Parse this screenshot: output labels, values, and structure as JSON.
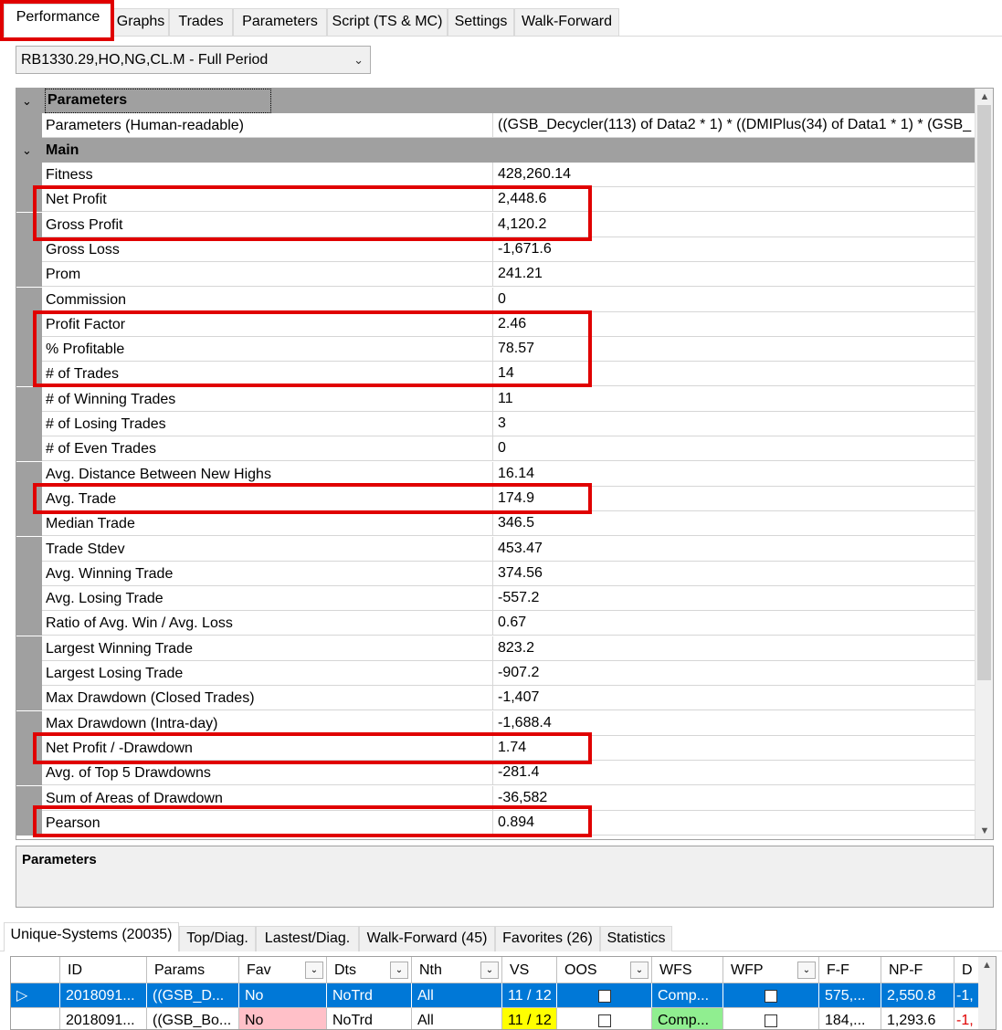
{
  "tabs": [
    "Performance",
    "Graphs",
    "Trades",
    "Parameters",
    "Script (TS & MC)",
    "Settings",
    "Walk-Forward"
  ],
  "period_select": "RB1330.29,HO,NG,CL.M - Full Period",
  "grid": {
    "cat_parameters": "Parameters",
    "param_name": "Parameters (Human-readable)",
    "param_value": "((GSB_Decycler(113) of Data2 * 1) * ((DMIPlus(34) of Data1 * 1) * (GSB_",
    "cat_main": "Main",
    "rows": [
      {
        "name": "Fitness",
        "value": "428,260.14"
      },
      {
        "name": "Net Profit",
        "value": "2,448.6"
      },
      {
        "name": "Gross Profit",
        "value": "4,120.2"
      },
      {
        "name": "Gross Loss",
        "value": "-1,671.6"
      },
      {
        "name": "Prom",
        "value": "241.21"
      },
      {
        "name": "Commission",
        "value": "0"
      },
      {
        "name": "Profit Factor",
        "value": "2.46"
      },
      {
        "name": "% Profitable",
        "value": "78.57"
      },
      {
        "name": "# of Trades",
        "value": "14"
      },
      {
        "name": "# of Winning Trades",
        "value": "11"
      },
      {
        "name": "# of Losing Trades",
        "value": "3"
      },
      {
        "name": "# of Even Trades",
        "value": "0"
      },
      {
        "name": "Avg. Distance Between New Highs",
        "value": "16.14"
      },
      {
        "name": "Avg. Trade",
        "value": "174.9"
      },
      {
        "name": "Median Trade",
        "value": "346.5"
      },
      {
        "name": "Trade Stdev",
        "value": "453.47"
      },
      {
        "name": "Avg. Winning Trade",
        "value": "374.56"
      },
      {
        "name": "Avg. Losing Trade",
        "value": "-557.2"
      },
      {
        "name": "Ratio of  Avg. Win / Avg. Loss",
        "value": "0.67"
      },
      {
        "name": "Largest Winning Trade",
        "value": "823.2"
      },
      {
        "name": "Largest Losing Trade",
        "value": "-907.2"
      },
      {
        "name": "Max Drawdown (Closed Trades)",
        "value": "-1,407"
      },
      {
        "name": "Max Drawdown (Intra-day)",
        "value": "-1,688.4"
      },
      {
        "name": "Net Profit / -Drawdown",
        "value": "1.74"
      },
      {
        "name": "Avg. of Top 5 Drawdowns",
        "value": "-281.4"
      },
      {
        "name": "Sum of Areas of Drawdown",
        "value": "-36,582"
      },
      {
        "name": "Pearson",
        "value": "0.894"
      }
    ]
  },
  "description_title": "Parameters",
  "bottom_tabs": [
    "Unique-Systems (20035)",
    "Top/Diag.",
    "Lastest/Diag.",
    "Walk-Forward (45)",
    "Favorites (26)",
    "Statistics"
  ],
  "table": {
    "columns": [
      "ID",
      "Params",
      "Fav",
      "Dts",
      "Nth",
      "VS",
      "OOS",
      "WFS",
      "WFP",
      "F-F",
      "NP-F",
      "D"
    ],
    "rows": [
      {
        "id": "2018091...",
        "params": "((GSB_D...",
        "fav": "No",
        "dts": "NoTrd",
        "nth": "All",
        "vs": "11 / 12",
        "wfs": "Comp...",
        "ff": "575,...",
        "npf": "2,550.8",
        "d": "-1,"
      },
      {
        "id": "2018091...",
        "params": "((GSB_Bo...",
        "fav": "No",
        "dts": "NoTrd",
        "nth": "All",
        "vs": "11 / 12",
        "wfs": "Comp...",
        "ff": "184,...",
        "npf": "1,293.6",
        "d": "-1,"
      }
    ]
  },
  "colors": {
    "highlight": "#e00000",
    "selection": "#0078d7",
    "fav_no_bg": "#ffc0c8",
    "vs_bg": "#ffff00",
    "wfs_bg": "#90ee90",
    "negative": "#e00000"
  }
}
